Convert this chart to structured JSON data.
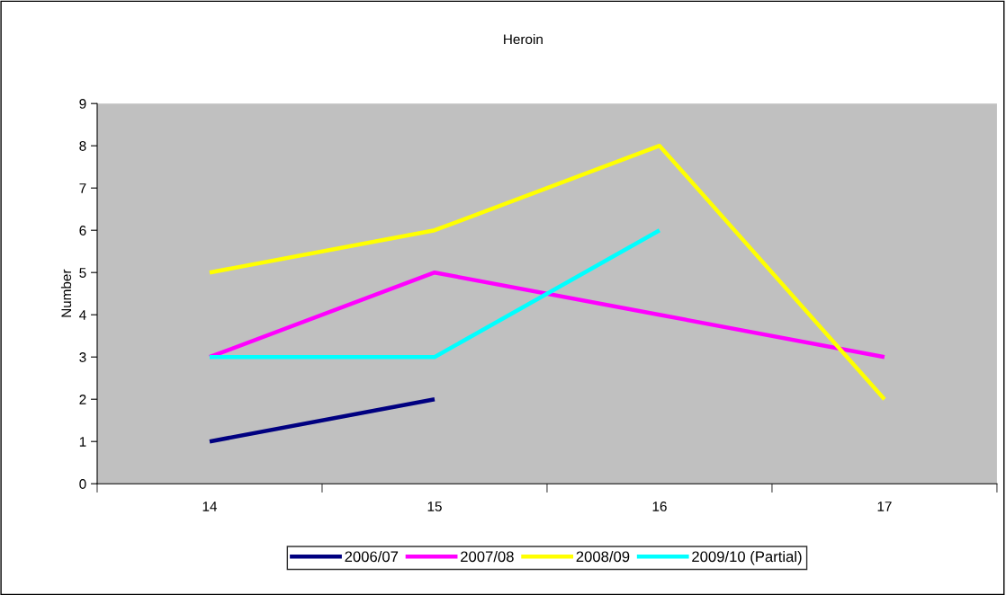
{
  "chart_data": {
    "type": "line",
    "title": "Heroin",
    "ylabel": "Number",
    "categories": [
      "14",
      "15",
      "16",
      "17"
    ],
    "series": [
      {
        "name": "2006/07",
        "color": "#000080",
        "values": [
          1,
          2,
          null,
          null
        ]
      },
      {
        "name": "2007/08",
        "color": "#ff00ff",
        "values": [
          3,
          5,
          4,
          3
        ]
      },
      {
        "name": "2008/09",
        "color": "#ffff00",
        "values": [
          5,
          6,
          8,
          2
        ]
      },
      {
        "name": "2009/10 (Partial)",
        "color": "#00ffff",
        "values": [
          3,
          3,
          6,
          null
        ]
      }
    ],
    "ylim": [
      0,
      9
    ],
    "yticks": [
      0,
      1,
      2,
      3,
      4,
      5,
      6,
      7,
      8,
      9
    ],
    "grid": false,
    "legend": "bottom",
    "marker": "none",
    "line_style": "solid"
  }
}
